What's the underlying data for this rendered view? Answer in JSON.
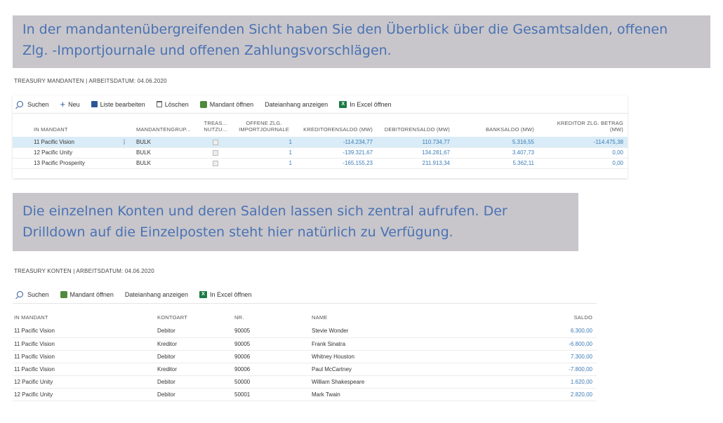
{
  "banner1": {
    "line1": "In der mandantenübergreifenden Sicht haben Sie den Überblick über die Gesamtsalden, offenen",
    "line2": "Zlg. -Importjournale und offenen Zahlungsvorschlägen."
  },
  "banner2": {
    "line1": "Die einzelnen Konten und deren Salden lassen sich zentral aufrufen. Der",
    "line2": "Drilldown auf die Einzelposten steht hier natürlich zu Verfügung."
  },
  "mandanten": {
    "title": "TREASURY MANDANTEN | ARBEITSDATUM: 04.06.2020",
    "toolbar": {
      "search": "Suchen",
      "new": "Neu",
      "edit_list": "Liste bearbeiten",
      "delete": "Löschen",
      "open_company": "Mandant öffnen",
      "show_attachment": "Dateianhang anzeigen",
      "open_excel": "In Excel öffnen"
    },
    "headers": {
      "company": "IN MANDANT",
      "group": "MANDANTENGRUP...",
      "treasury": "TREAS... NUTZU...",
      "journals": "OFFENE ZLG. IMPORTJOURNALE",
      "creditor_balance": "KREDITORENSALDO (MW)",
      "debtor_balance": "DEBITORENSALDO (MW)",
      "bank_balance": "BANKSALDO (MW)",
      "creditor_payment": "KREDITOR ZLG. BETRAG (MW)"
    },
    "rows": [
      {
        "company": "11 Pacific Vision",
        "group": "BULK",
        "journals": "1",
        "creditor_balance": "-114.234,77",
        "debtor_balance": "110.734,77",
        "bank_balance": "5.316,55",
        "creditor_payment": "-114.475,38"
      },
      {
        "company": "12 Pacific Unity",
        "group": "BULK",
        "journals": "1",
        "creditor_balance": "-139.321,67",
        "debtor_balance": "134.281,67",
        "bank_balance": "3.407,73",
        "creditor_payment": "0,00"
      },
      {
        "company": "13 Pacific Prosperity",
        "group": "BULK",
        "journals": "1",
        "creditor_balance": "-165.155,23",
        "debtor_balance": "211.913,34",
        "bank_balance": "5.362,11",
        "creditor_payment": "0,00"
      }
    ]
  },
  "konten": {
    "title": "TREASURY KONTEN | ARBEITSDATUM: 04.06.2020",
    "toolbar": {
      "search": "Suchen",
      "open_company": "Mandant öffnen",
      "show_attachment": "Dateianhang anzeigen",
      "open_excel": "In Excel öffnen"
    },
    "headers": {
      "company": "IN MANDANT",
      "type": "KONTOART",
      "no": "NR.",
      "name": "NAME",
      "balance": "SALDO"
    },
    "rows": [
      {
        "company": "11 Pacific Vision",
        "type": "Debitor",
        "no": "90005",
        "name": "Stevie Wonder",
        "balance": "6.300,00"
      },
      {
        "company": "11 Pacific Vision",
        "type": "Kreditor",
        "no": "90005",
        "name": "Frank Sinatra",
        "balance": "-6.800,00"
      },
      {
        "company": "11 Pacific Vision",
        "type": "Debitor",
        "no": "90006",
        "name": "Whitney Houston",
        "balance": "7.300,00"
      },
      {
        "company": "11 Pacific Vision",
        "type": "Kreditor",
        "no": "90006",
        "name": "Paul McCartney",
        "balance": "-7.800,00"
      },
      {
        "company": "12 Pacific Unity",
        "type": "Debitor",
        "no": "50000",
        "name": "William Shakespeare",
        "balance": "1.620,00"
      },
      {
        "company": "12 Pacific Unity",
        "type": "Debitor",
        "no": "50001",
        "name": "Mark Twain",
        "balance": "2.820,00"
      }
    ]
  },
  "icons": {
    "search": "search-icon",
    "new": "plus-icon",
    "edit": "edit-list-icon",
    "delete": "trash-icon",
    "company": "company-icon",
    "excel": "excel-icon"
  }
}
